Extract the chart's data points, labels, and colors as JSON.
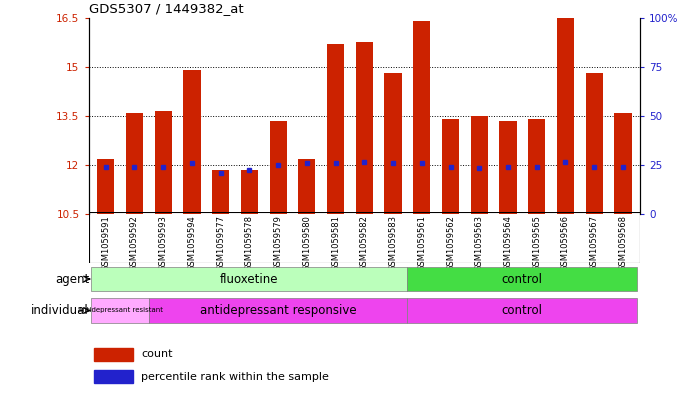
{
  "title": "GDS5307 / 1449382_at",
  "samples": [
    "GSM1059591",
    "GSM1059592",
    "GSM1059593",
    "GSM1059594",
    "GSM1059577",
    "GSM1059578",
    "GSM1059579",
    "GSM1059580",
    "GSM1059581",
    "GSM1059582",
    "GSM1059583",
    "GSM1059561",
    "GSM1059562",
    "GSM1059563",
    "GSM1059564",
    "GSM1059565",
    "GSM1059566",
    "GSM1059567",
    "GSM1059568"
  ],
  "bar_tops": [
    12.2,
    13.6,
    13.65,
    14.9,
    11.85,
    11.85,
    13.35,
    12.2,
    15.7,
    15.75,
    14.8,
    16.4,
    13.4,
    13.5,
    13.35,
    13.4,
    16.5,
    14.8,
    13.6
  ],
  "bar_bottom": 10.5,
  "percentile_values": [
    11.95,
    11.95,
    11.95,
    12.05,
    11.75,
    11.85,
    12.0,
    12.05,
    12.05,
    12.1,
    12.05,
    12.05,
    11.95,
    11.9,
    11.95,
    11.95,
    12.1,
    11.95,
    11.95
  ],
  "bar_color": "#cc2200",
  "percentile_color": "#2222cc",
  "ylim_left": [
    10.5,
    16.5
  ],
  "ylim_right": [
    0,
    100
  ],
  "yticks_left": [
    10.5,
    12.0,
    13.5,
    15.0,
    16.5
  ],
  "yticks_right": [
    0,
    25,
    50,
    75,
    100
  ],
  "ytick_labels_left": [
    "10.5",
    "12",
    "13.5",
    "15",
    "16.5"
  ],
  "ytick_labels_right": [
    "0",
    "25",
    "50",
    "75",
    "100%"
  ],
  "fluoxetine_color": "#bbffbb",
  "control_agent_color": "#44dd44",
  "resist_color": "#ffaaff",
  "responsive_color": "#ee44ee",
  "control_indiv_color": "#ee44ee",
  "xtick_bg_color": "#dddddd",
  "chart_bg": "#ffffff"
}
